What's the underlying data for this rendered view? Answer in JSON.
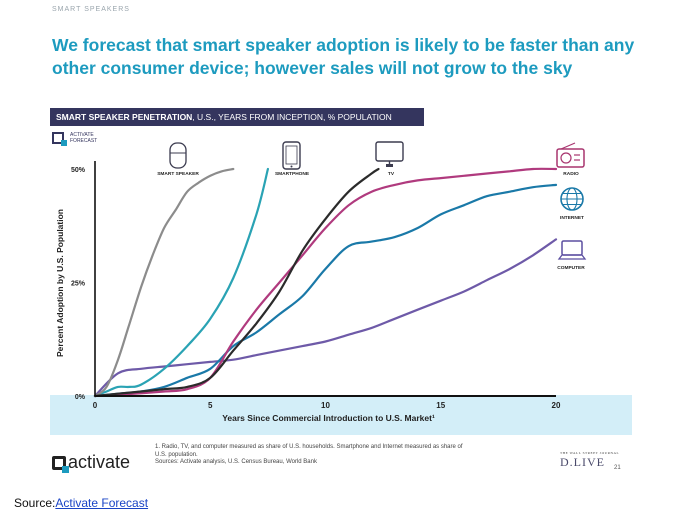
{
  "page": {
    "section_tag": "SMART SPEAKERS",
    "headline": "We forecast that smart speaker adoption is likely to be faster than any other consumer device; however sales will not grow to the sky",
    "chart_header_bold": "SMART SPEAKER PENETRATION",
    "chart_header_rest": ", U.S., YEARS FROM INCEPTION, % POPULATION",
    "forecast_brand_line1": "ACTIVATE",
    "forecast_brand_line2": "FORECAST",
    "footnote_line1": "1. Radio, TV, and computer measured as share of U.S. households. Smartphone and Internet measured as share of",
    "footnote_line2": "U.S. population.",
    "footnote_line3": "Sources: Activate analysis, U.S. Census Bureau, World Bank",
    "activate_brand": "activate",
    "dlive_small": "THE WALL STREET JOURNAL",
    "dlive_big": "D.LIVE",
    "page_number": "21",
    "source_label": "Source:",
    "source_link": "Activate Forecast"
  },
  "colors": {
    "headline": "#1d9bbf",
    "header_bg": "#34355e",
    "band": "#d3eef8",
    "smart_speaker": "#8c8c8c",
    "smartphone": "#2aa3b4",
    "tv": "#2b2b2b",
    "radio": "#b03a7e",
    "internet": "#1a79a8",
    "computer": "#6e5aa8",
    "icon": "#3b3b4f",
    "radio_icon": "#a8356f",
    "internet_icon": "#1a79a8",
    "computer_icon": "#5b4ea0"
  },
  "chart_data": {
    "type": "line",
    "title": "SMART SPEAKER PENETRATION, U.S., YEARS FROM INCEPTION, % POPULATION",
    "xlabel": "Years Since Commercial Introduction to U.S. Market¹",
    "ylabel": "Percent Adoption by U.S. Population",
    "xlim": [
      0,
      20
    ],
    "ylim": [
      0,
      50
    ],
    "x_ticks": [
      0,
      5,
      10,
      15,
      20
    ],
    "y_ticks": [
      0,
      25,
      50
    ],
    "x_tick_labels": [
      "0",
      "5",
      "10",
      "15",
      "20"
    ],
    "y_tick_labels": [
      "0%",
      "25%",
      "50%"
    ],
    "grid": false,
    "series": [
      {
        "name": "SMART SPEAKER",
        "color_key": "smart_speaker",
        "x": [
          0,
          0.5,
          1,
          1.5,
          2,
          2.5,
          3,
          3.5,
          4,
          4.5,
          5,
          5.5,
          6
        ],
        "y": [
          0,
          2,
          8,
          16,
          24,
          31,
          37,
          41,
          45,
          47,
          48.5,
          49.5,
          50
        ]
      },
      {
        "name": "SMARTPHONE",
        "color_key": "smartphone",
        "x": [
          0,
          0.5,
          1,
          1.5,
          2,
          3,
          4,
          5,
          6,
          7,
          7.5
        ],
        "y": [
          0,
          1,
          2,
          2,
          2.5,
          6,
          11,
          17,
          26,
          40,
          50
        ]
      },
      {
        "name": "TV",
        "color_key": "tv",
        "x": [
          0,
          1,
          2,
          3,
          4,
          5,
          6,
          7,
          8,
          9,
          10,
          11,
          12,
          12.3
        ],
        "y": [
          0,
          0.5,
          1,
          1.5,
          2,
          4,
          10,
          16,
          23,
          32,
          39,
          45,
          49,
          50
        ]
      },
      {
        "name": "RADIO",
        "color_key": "radio",
        "x": [
          0,
          1,
          2,
          3,
          4,
          5,
          6,
          7,
          8,
          9,
          10,
          11,
          12,
          13,
          14,
          15,
          16,
          17,
          18,
          19,
          20
        ],
        "y": [
          0,
          0.3,
          0.6,
          1,
          1.5,
          4,
          12,
          19,
          25,
          31,
          37,
          42,
          45,
          46.5,
          47.5,
          48,
          48.5,
          49,
          49.5,
          50,
          50
        ]
      },
      {
        "name": "INTERNET",
        "color_key": "internet",
        "x": [
          0,
          1,
          2,
          3,
          4,
          5,
          6,
          7,
          8,
          9,
          10,
          11,
          12,
          13,
          14,
          15,
          16,
          17,
          18,
          19,
          20
        ],
        "y": [
          0,
          0.5,
          1,
          2,
          4,
          6,
          11,
          14,
          18,
          22,
          28,
          33,
          34,
          35,
          37,
          40,
          42,
          44,
          45,
          46,
          46.5
        ]
      },
      {
        "name": "COMPUTER",
        "color_key": "computer",
        "x": [
          0,
          1,
          2,
          3,
          4,
          5,
          6,
          7,
          8,
          9,
          10,
          11,
          12,
          13,
          14,
          15,
          16,
          17,
          18,
          19,
          20
        ],
        "y": [
          0,
          5,
          6,
          6.5,
          7,
          7.5,
          8,
          9,
          10,
          11,
          12,
          13.5,
          15,
          17,
          19,
          21,
          23,
          25.5,
          28,
          31,
          34.5
        ]
      }
    ],
    "labels": [
      {
        "text": "SMART SPEAKER",
        "icon": "smart-speaker-icon"
      },
      {
        "text": "SMARTPHONE",
        "icon": "smartphone-icon"
      },
      {
        "text": "TV",
        "icon": "tv-icon"
      },
      {
        "text": "RADIO",
        "icon": "radio-icon"
      },
      {
        "text": "INTERNET",
        "icon": "globe-icon"
      },
      {
        "text": "COMPUTER",
        "icon": "laptop-icon"
      }
    ]
  }
}
